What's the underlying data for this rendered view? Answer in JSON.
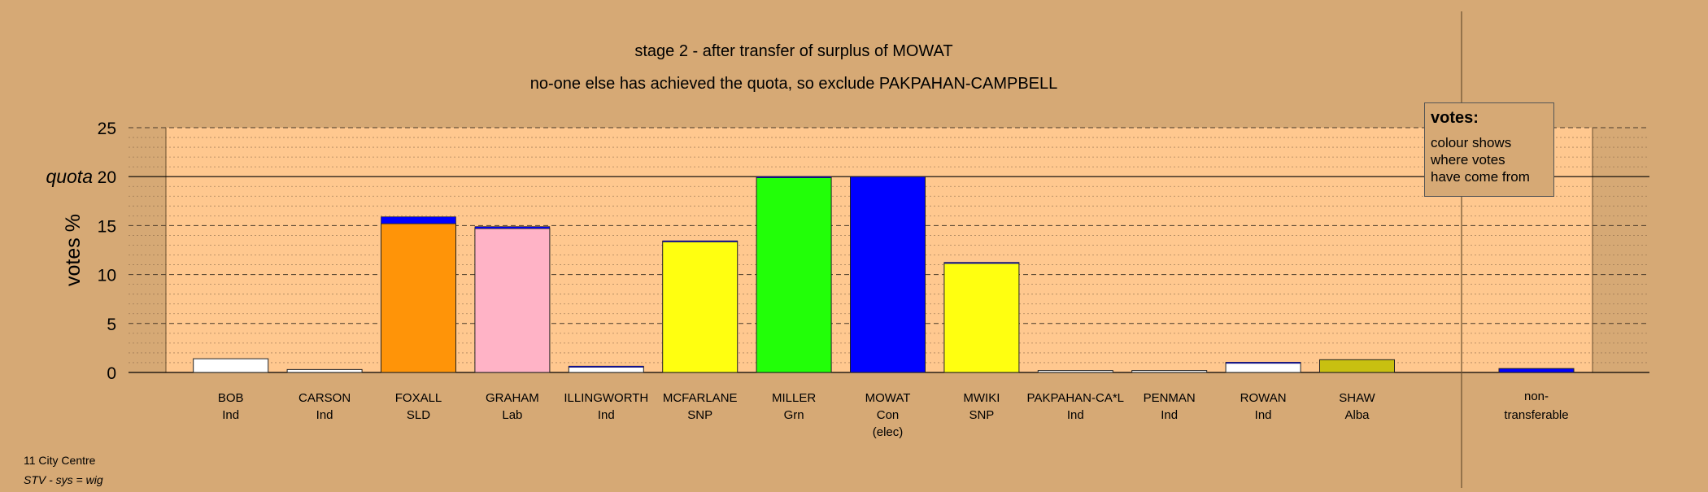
{
  "header": {
    "title": "stage 2 - after transfer of surplus of MOWAT",
    "subtitle": "no-one else has achieved the quota, so exclude PAKPAHAN-CAMPBELL"
  },
  "legend": {
    "title": "votes:",
    "lines": [
      "colour shows",
      "where votes",
      "have come from"
    ]
  },
  "footer": {
    "ward": "11 City Centre",
    "system": "STV - sys = wig"
  },
  "colors": {
    "background": "#d6a975",
    "plot_area": "#ffc88f",
    "Ind": "#ffffff",
    "SLD": "#ff9408",
    "Lab": "#ffb3c6",
    "SNP": "#ffff10",
    "Grn": "#22ff08",
    "Con": "#0000ff",
    "Alba": "#c8c010"
  },
  "chart_data": {
    "type": "bar",
    "title": "stage 2 - after transfer of surplus of MOWAT",
    "subtitle": "no-one else has achieved the quota, so exclude PAKPAHAN-CAMPBELL",
    "ylabel": "votes %",
    "ylim": [
      0,
      25
    ],
    "yticks": [
      0,
      5,
      10,
      15,
      20,
      25
    ],
    "quota": {
      "label": "quota",
      "value": 20
    },
    "grid": true,
    "legend_position": "top-right",
    "categories": [
      {
        "name": "BOB",
        "party": "Ind",
        "note": "",
        "base": 1.4,
        "transfer": 0.0,
        "color": "#ffffff"
      },
      {
        "name": "CARSON",
        "party": "Ind",
        "note": "",
        "base": 0.3,
        "transfer": 0.0,
        "color": "#ffffff"
      },
      {
        "name": "FOXALL",
        "party": "SLD",
        "note": "",
        "base": 15.2,
        "transfer": 0.7,
        "color": "#ff9408"
      },
      {
        "name": "GRAHAM",
        "party": "Lab",
        "note": "",
        "base": 14.7,
        "transfer": 0.2,
        "color": "#ffb3c6"
      },
      {
        "name": "ILLINGWORTH",
        "party": "Ind",
        "note": "",
        "base": 0.6,
        "transfer": 0.05,
        "color": "#ffffff"
      },
      {
        "name": "MCFARLANE",
        "party": "SNP",
        "note": "",
        "base": 13.4,
        "transfer": 0.05,
        "color": "#ffff10"
      },
      {
        "name": "MILLER",
        "party": "Grn",
        "note": "",
        "base": 19.9,
        "transfer": 0.1,
        "color": "#22ff08"
      },
      {
        "name": "MOWAT",
        "party": "Con",
        "note": "(elec)",
        "base": 20.0,
        "transfer": 0.0,
        "color": "#0000ff"
      },
      {
        "name": "MWIKI",
        "party": "SNP",
        "note": "",
        "base": 11.2,
        "transfer": 0.05,
        "color": "#ffff10"
      },
      {
        "name": "PAKPAHAN-CA*L",
        "party": "Ind",
        "note": "",
        "base": 0.2,
        "transfer": 0.0,
        "color": "#ffffff"
      },
      {
        "name": "PENMAN",
        "party": "Ind",
        "note": "",
        "base": 0.2,
        "transfer": 0.0,
        "color": "#ffffff"
      },
      {
        "name": "ROWAN",
        "party": "Ind",
        "note": "",
        "base": 1.0,
        "transfer": 0.05,
        "color": "#ffffff"
      },
      {
        "name": "SHAW",
        "party": "Alba",
        "note": "",
        "base": 1.3,
        "transfer": 0.0,
        "color": "#c8c010"
      }
    ],
    "non_transferable": {
      "label1": "non-",
      "label2": "transferable",
      "value": 0.4,
      "color": "#0000ff"
    }
  }
}
